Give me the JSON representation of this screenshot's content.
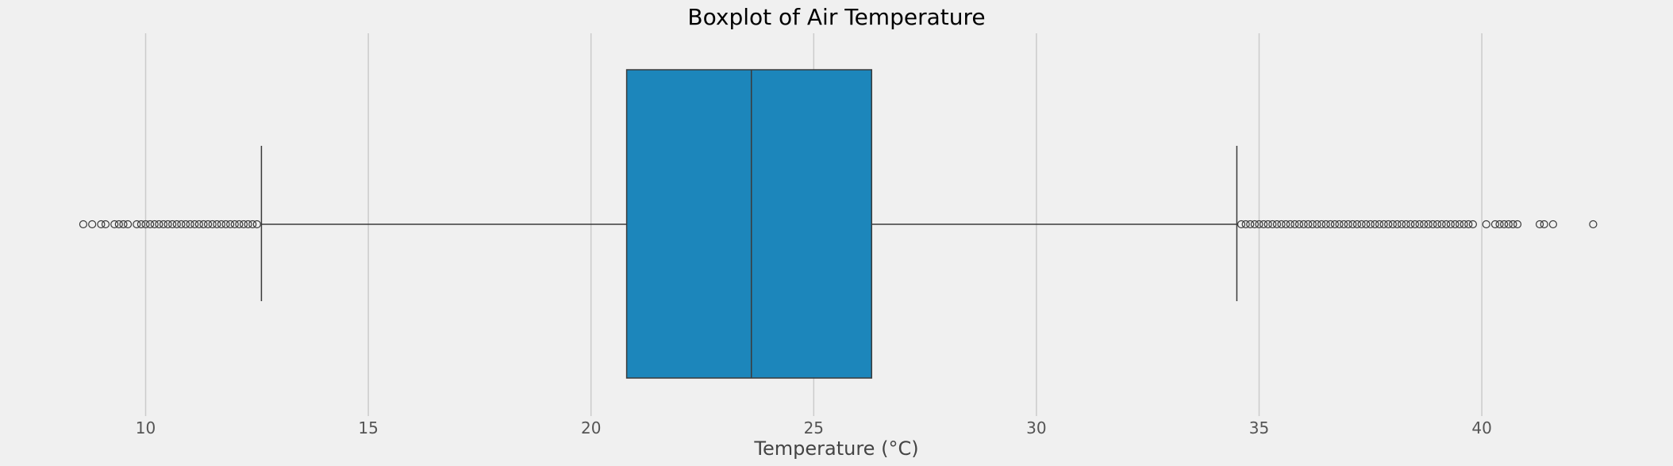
{
  "chart_data": {
    "type": "boxplot",
    "title": "Boxplot of Air Temperature",
    "xlabel": "Temperature (°C)",
    "ylabel": "",
    "xlim": [
      8.0,
      43.7
    ],
    "xticks": [
      10,
      15,
      20,
      25,
      30,
      35,
      40
    ],
    "xtick_labels": [
      "10",
      "15",
      "20",
      "25",
      "30",
      "35",
      "40"
    ],
    "grid": "vertical",
    "box": {
      "whisker_low": 12.6,
      "q1": 20.8,
      "median": 23.6,
      "q3": 26.3,
      "whisker_high": 34.5
    },
    "outliers_low": [
      8.6,
      8.8,
      9.0,
      9.1,
      9.3,
      9.4,
      9.5,
      9.6,
      9.8,
      9.9,
      10.0,
      10.1,
      10.2,
      10.3,
      10.4,
      10.5,
      10.6,
      10.7,
      10.8,
      10.9,
      11.0,
      11.1,
      11.2,
      11.3,
      11.4,
      11.5,
      11.6,
      11.7,
      11.8,
      11.9,
      12.0,
      12.1,
      12.2,
      12.3,
      12.4,
      12.5
    ],
    "outliers_high": [
      34.6,
      34.7,
      34.8,
      34.9,
      35.0,
      35.1,
      35.2,
      35.3,
      35.4,
      35.5,
      35.6,
      35.7,
      35.8,
      35.9,
      36.0,
      36.1,
      36.2,
      36.3,
      36.4,
      36.5,
      36.6,
      36.7,
      36.8,
      36.9,
      37.0,
      37.1,
      37.2,
      37.3,
      37.4,
      37.5,
      37.6,
      37.7,
      37.8,
      37.9,
      38.0,
      38.1,
      38.2,
      38.3,
      38.4,
      38.5,
      38.6,
      38.7,
      38.8,
      38.9,
      39.0,
      39.1,
      39.2,
      39.3,
      39.4,
      39.5,
      39.6,
      39.7,
      39.8,
      40.1,
      40.3,
      40.4,
      40.5,
      40.6,
      40.7,
      40.8,
      41.3,
      41.4,
      41.6,
      42.5
    ],
    "colors": {
      "box_fill": "#1c86bb",
      "line": "#3a3a3a",
      "grid": "#cbcbcb",
      "background": "#f0f0f0"
    }
  }
}
